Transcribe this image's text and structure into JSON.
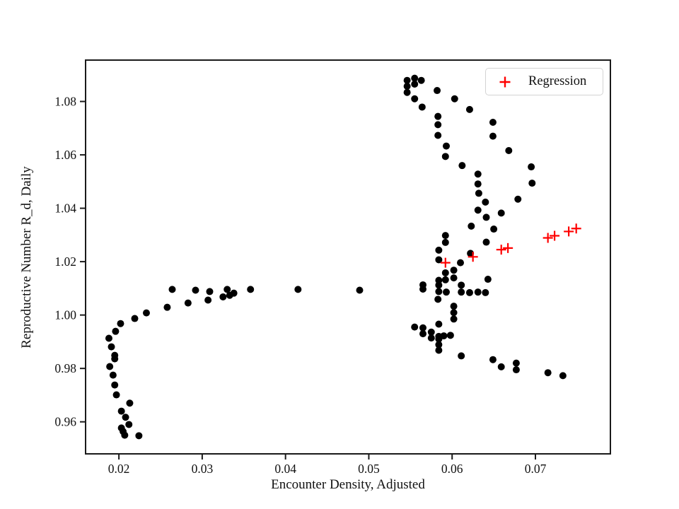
{
  "colors": {
    "scatter_marker": "#000000",
    "regression_marker": "#ff0000",
    "axis": "#1a1a1a",
    "legend_border": "#d3d3d3",
    "background": "#ffffff"
  },
  "chart_data": {
    "type": "scatter",
    "title": "",
    "xlabel": "Encounter Density, Adjusted",
    "ylabel": "Reproductive Number R_d, Daily",
    "xlim": [
      0.016,
      0.079
    ],
    "ylim": [
      0.948,
      1.0955
    ],
    "x_ticks": [
      0.02,
      0.03,
      0.04,
      0.05,
      0.06,
      0.07
    ],
    "y_ticks": [
      0.96,
      0.98,
      1.0,
      1.02,
      1.04,
      1.06,
      1.08
    ],
    "grid": false,
    "legend": {
      "position": "upper right",
      "entries": [
        {
          "label": "Regression",
          "marker": "plus",
          "color": "#ff0000"
        }
      ]
    },
    "series": [
      {
        "name": "",
        "marker": "circle",
        "color": "#000000",
        "points": [
          [
            0.0188,
            0.9913
          ],
          [
            0.0189,
            0.9807
          ],
          [
            0.0191,
            0.9881
          ],
          [
            0.0193,
            0.9775
          ],
          [
            0.0195,
            0.9849
          ],
          [
            0.0195,
            0.9836
          ],
          [
            0.0195,
            0.9738
          ],
          [
            0.0196,
            0.9939
          ],
          [
            0.0197,
            0.9701
          ],
          [
            0.0202,
            0.9968
          ],
          [
            0.0203,
            0.964
          ],
          [
            0.0203,
            0.9577
          ],
          [
            0.0205,
            0.9564
          ],
          [
            0.0207,
            0.955
          ],
          [
            0.0208,
            0.9617
          ],
          [
            0.0212,
            0.959
          ],
          [
            0.0213,
            0.967
          ],
          [
            0.0219,
            0.9987
          ],
          [
            0.0224,
            0.9548
          ],
          [
            0.0233,
            1.0008
          ],
          [
            0.0258,
            1.0029
          ],
          [
            0.0264,
            1.0096
          ],
          [
            0.0283,
            1.0045
          ],
          [
            0.0292,
            1.0093
          ],
          [
            0.0307,
            1.0056
          ],
          [
            0.0309,
            1.0088
          ],
          [
            0.0325,
            1.0068
          ],
          [
            0.033,
            1.0096
          ],
          [
            0.0333,
            1.0074
          ],
          [
            0.0338,
            1.0082
          ],
          [
            0.0358,
            1.0096
          ],
          [
            0.0415,
            1.0096
          ],
          [
            0.0489,
            1.0093
          ],
          [
            0.0546,
            1.0879
          ],
          [
            0.0546,
            1.0857
          ],
          [
            0.0546,
            1.0834
          ],
          [
            0.0555,
            1.0887
          ],
          [
            0.0555,
            1.0865
          ],
          [
            0.0563,
            1.0879
          ],
          [
            0.0582,
            1.0841
          ],
          [
            0.0555,
            1.081
          ],
          [
            0.0564,
            1.0779
          ],
          [
            0.0603,
            1.081
          ],
          [
            0.0621,
            1.077
          ],
          [
            0.0583,
            1.0744
          ],
          [
            0.0583,
            1.0713
          ],
          [
            0.0649,
            1.0722
          ],
          [
            0.0583,
            1.0673
          ],
          [
            0.0649,
            1.067
          ],
          [
            0.0593,
            1.0633
          ],
          [
            0.0668,
            1.0616
          ],
          [
            0.0592,
            1.0594
          ],
          [
            0.0612,
            1.056
          ],
          [
            0.0695,
            1.0555
          ],
          [
            0.0631,
            1.0528
          ],
          [
            0.0696,
            1.0494
          ],
          [
            0.0631,
            1.0491
          ],
          [
            0.0632,
            1.0456
          ],
          [
            0.0679,
            1.0434
          ],
          [
            0.064,
            1.0423
          ],
          [
            0.0631,
            1.0393
          ],
          [
            0.0659,
            1.0382
          ],
          [
            0.0641,
            1.0366
          ],
          [
            0.0623,
            1.0333
          ],
          [
            0.065,
            1.0322
          ],
          [
            0.0592,
            1.0298
          ],
          [
            0.0592,
            1.0272
          ],
          [
            0.0641,
            1.0273
          ],
          [
            0.0584,
            1.0243
          ],
          [
            0.0622,
            1.0231
          ],
          [
            0.0584,
            1.0207
          ],
          [
            0.061,
            1.0196
          ],
          [
            0.0592,
            1.0158
          ],
          [
            0.0602,
            1.0168
          ],
          [
            0.0584,
            1.013
          ],
          [
            0.0592,
            1.0132
          ],
          [
            0.0602,
            1.0139
          ],
          [
            0.0643,
            1.0134
          ],
          [
            0.0565,
            1.0113
          ],
          [
            0.0565,
            1.0097
          ],
          [
            0.0584,
            1.0112
          ],
          [
            0.0611,
            1.0112
          ],
          [
            0.0584,
            1.0088
          ],
          [
            0.0593,
            1.0086
          ],
          [
            0.0611,
            1.0086
          ],
          [
            0.0621,
            1.0084
          ],
          [
            0.0631,
            1.0086
          ],
          [
            0.064,
            1.0084
          ],
          [
            0.0583,
            1.0059
          ],
          [
            0.0602,
            1.0033
          ],
          [
            0.0602,
            1.0009
          ],
          [
            0.0602,
            0.9985
          ],
          [
            0.0584,
            0.9966
          ],
          [
            0.0555,
            0.9955
          ],
          [
            0.0565,
            0.9952
          ],
          [
            0.0565,
            0.993
          ],
          [
            0.0575,
            0.9936
          ],
          [
            0.0575,
            0.9914
          ],
          [
            0.0584,
            0.992
          ],
          [
            0.059,
            0.9922
          ],
          [
            0.0598,
            0.9924
          ],
          [
            0.0584,
            0.991
          ],
          [
            0.0584,
            0.9889
          ],
          [
            0.0584,
            0.9868
          ],
          [
            0.0611,
            0.9847
          ],
          [
            0.0649,
            0.9833
          ],
          [
            0.0659,
            0.9806
          ],
          [
            0.0677,
            0.982
          ],
          [
            0.0677,
            0.9795
          ],
          [
            0.0715,
            0.9784
          ],
          [
            0.0733,
            0.9773
          ]
        ]
      },
      {
        "name": "Regression",
        "marker": "plus",
        "color": "#ff0000",
        "points": [
          [
            0.0592,
            1.0196
          ],
          [
            0.0625,
            1.0218
          ],
          [
            0.0659,
            1.0245
          ],
          [
            0.0667,
            1.0251
          ],
          [
            0.0715,
            1.0289
          ],
          [
            0.0723,
            1.0297
          ],
          [
            0.074,
            1.0313
          ],
          [
            0.0749,
            1.0324
          ]
        ]
      }
    ]
  }
}
